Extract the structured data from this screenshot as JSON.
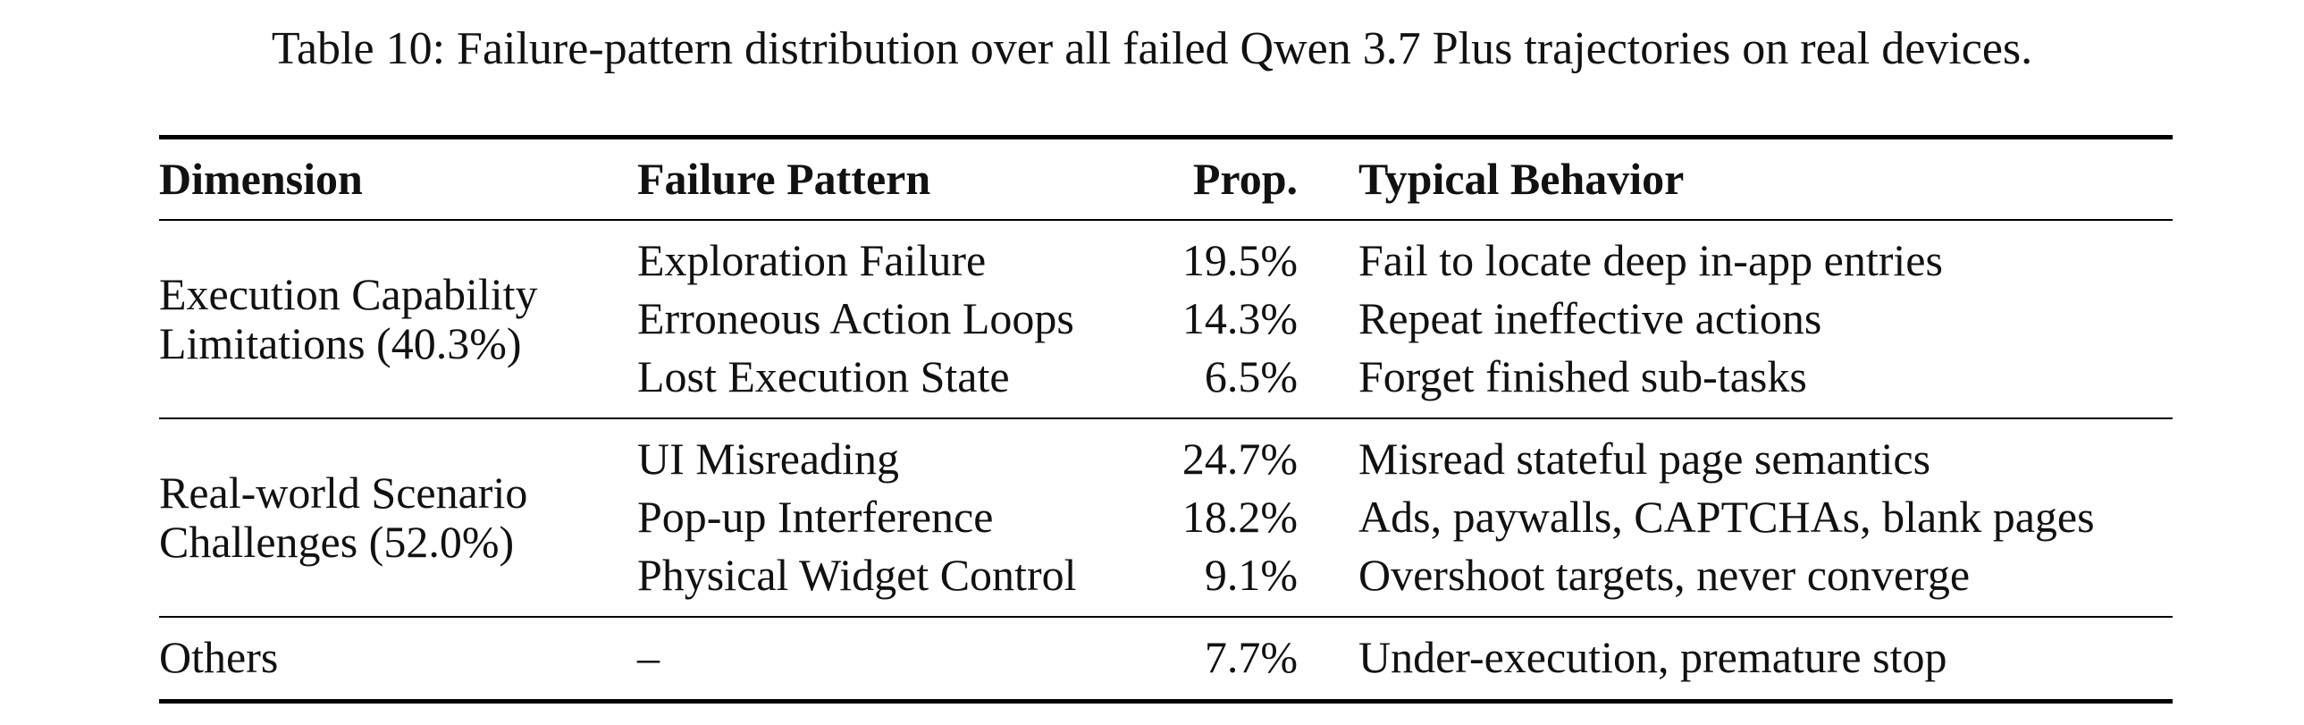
{
  "caption": "Table 10: Failure-pattern distribution over all failed Qwen 3.7 Plus trajectories on real devices.",
  "table": {
    "header": [
      "Dimension",
      "Failure Pattern",
      "Prop.",
      "Typical Behavior"
    ],
    "groups": [
      {
        "dimension": [
          "Execution Capability",
          "Limitations (40.3%)"
        ],
        "rows": [
          [
            "Exploration Failure",
            "19.5%",
            "Fail to locate deep in-app entries"
          ],
          [
            "Erroneous Action Loops",
            "14.3%",
            "Repeat ineffective actions"
          ],
          [
            "Lost Execution State",
            "6.5%",
            "Forget finished sub-tasks"
          ]
        ]
      },
      {
        "dimension": [
          "Real-world Scenario",
          "Challenges (52.0%)"
        ],
        "rows": [
          [
            "UI Misreading",
            "24.7%",
            "Misread stateful page semantics"
          ],
          [
            "Pop-up Interference",
            "18.2%",
            "Ads, paywalls, CAPTCHAs, blank pages"
          ],
          [
            "Physical Widget Control",
            "9.1%",
            "Overshoot targets, never converge"
          ]
        ]
      },
      {
        "dimension": [
          "Others"
        ],
        "rows": [
          [
            "–",
            "7.7%",
            "Under-execution, premature stop"
          ]
        ]
      }
    ]
  }
}
